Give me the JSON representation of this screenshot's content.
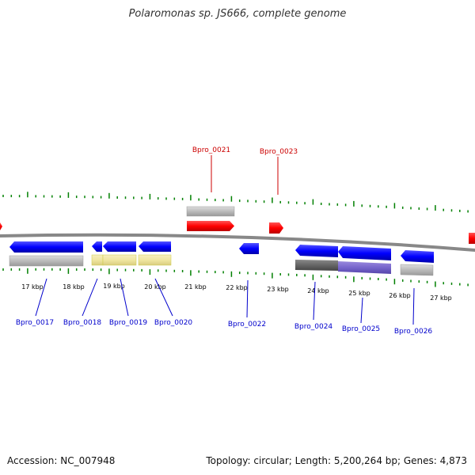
{
  "title": "Polaromonas sp. JS666, complete genome",
  "footer": {
    "accession": "Accession: NC_007948",
    "summary": "Topology: circular; Length: 5,200,264 bp; Genes: 4,873"
  },
  "colors": {
    "forward_gene": "#ff0000",
    "reverse_gene": "#0000ff",
    "tick": "#008000",
    "backbone": "#777777",
    "grey_feature": "#bbbbbb",
    "yellow_feature": "#f0e6a0",
    "dark_feature": "#666666",
    "purple_feature": "#7766cc"
  },
  "kbp_labels": [
    "17 kbp",
    "18 kbp",
    "19 kbp",
    "20 kbp",
    "21 kbp",
    "22 kbp",
    "23 kbp",
    "24 kbp",
    "25 kbp",
    "26 kbp",
    "27 kbp"
  ],
  "genes_top": [
    "Bpro_0021",
    "Bpro_0023"
  ],
  "genes_bottom": [
    "Bpro_0017",
    "Bpro_0018",
    "Bpro_0019",
    "Bpro_0020",
    "Bpro_0022",
    "Bpro_0024",
    "Bpro_0025",
    "Bpro_0026"
  ]
}
